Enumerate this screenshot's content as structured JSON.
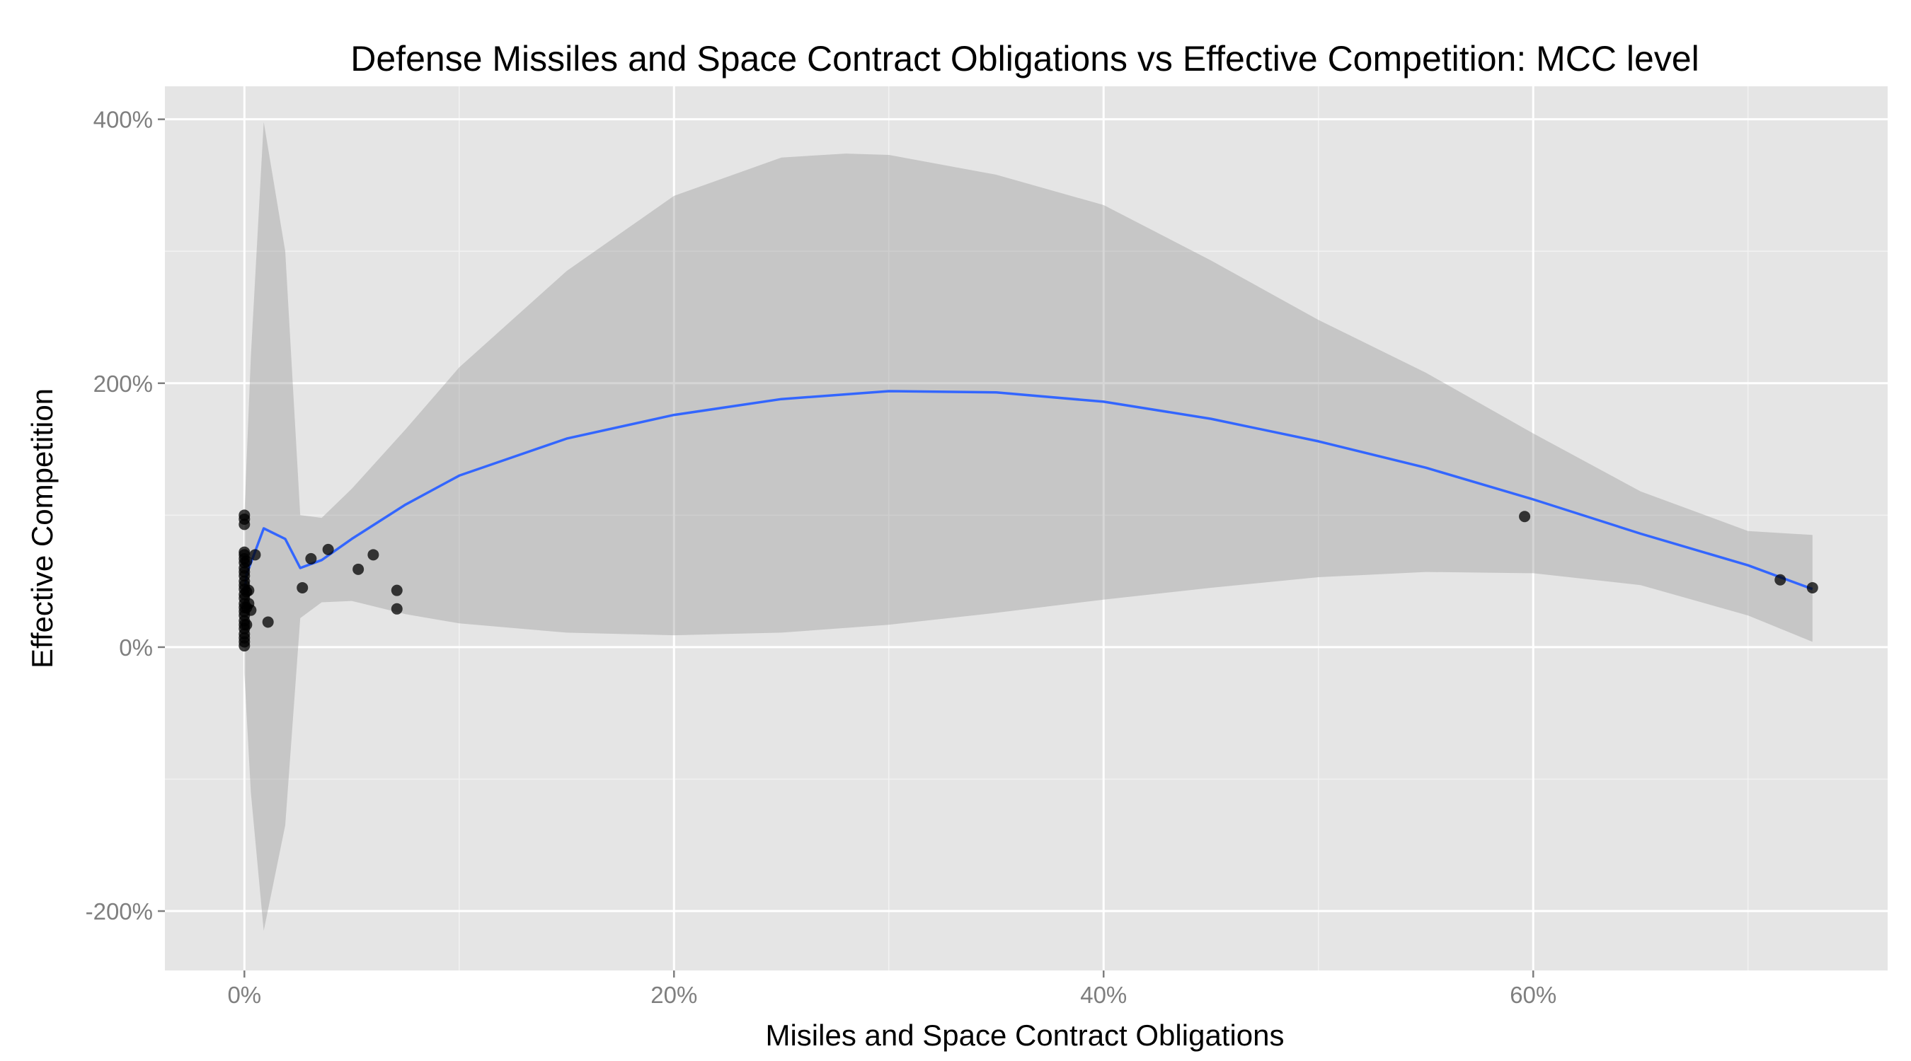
{
  "chart_data": {
    "type": "scatter",
    "title": "Defense Missiles and Space Contract Obligations vs Effective Competition: MCC level",
    "xlabel": "Misiles and Space Contract Obligations",
    "ylabel": "Effective Competition",
    "xlim": [
      -0.037,
      0.765
    ],
    "ylim": [
      -2.45,
      4.25
    ],
    "x_ticks": [
      0,
      0.2,
      0.4,
      0.6
    ],
    "x_tick_labels": [
      "0%",
      "20%",
      "40%",
      "60%"
    ],
    "y_ticks": [
      -2,
      0,
      2,
      4
    ],
    "y_tick_labels": [
      "-200%",
      "0%",
      "200%",
      "400%"
    ],
    "grid": true,
    "legend": "none",
    "colors": {
      "panel_background": "#e5e5e5",
      "grid_line": "#ffffff",
      "point": "#000000",
      "smooth_line": "#3366ff",
      "confidence_band": "#999999"
    },
    "points": [
      {
        "x": 0.0,
        "y": 1.0
      },
      {
        "x": 0.0,
        "y": 0.97
      },
      {
        "x": 0.0,
        "y": 0.93
      },
      {
        "x": 0.0,
        "y": 0.72
      },
      {
        "x": 0.0,
        "y": 0.7
      },
      {
        "x": 0.0,
        "y": 0.67
      },
      {
        "x": 0.0,
        "y": 0.64
      },
      {
        "x": 0.0,
        "y": 0.6
      },
      {
        "x": 0.0,
        "y": 0.57
      },
      {
        "x": 0.0,
        "y": 0.54
      },
      {
        "x": 0.0,
        "y": 0.5
      },
      {
        "x": 0.0,
        "y": 0.47
      },
      {
        "x": 0.0,
        "y": 0.44
      },
      {
        "x": 0.0,
        "y": 0.4
      },
      {
        "x": 0.0,
        "y": 0.37
      },
      {
        "x": 0.0,
        "y": 0.33
      },
      {
        "x": 0.0,
        "y": 0.3
      },
      {
        "x": 0.0,
        "y": 0.27
      },
      {
        "x": 0.0,
        "y": 0.24
      },
      {
        "x": 0.0,
        "y": 0.2
      },
      {
        "x": 0.0,
        "y": 0.17
      },
      {
        "x": 0.0,
        "y": 0.14
      },
      {
        "x": 0.0,
        "y": 0.1
      },
      {
        "x": 0.0,
        "y": 0.07
      },
      {
        "x": 0.0,
        "y": 0.04
      },
      {
        "x": 0.0,
        "y": 0.01
      },
      {
        "x": 0.001,
        "y": 0.65
      },
      {
        "x": 0.001,
        "y": 0.42
      },
      {
        "x": 0.001,
        "y": 0.3
      },
      {
        "x": 0.001,
        "y": 0.17
      },
      {
        "x": 0.002,
        "y": 0.43
      },
      {
        "x": 0.002,
        "y": 0.33
      },
      {
        "x": 0.003,
        "y": 0.28
      },
      {
        "x": 0.005,
        "y": 0.7
      },
      {
        "x": 0.011,
        "y": 0.19
      },
      {
        "x": 0.027,
        "y": 0.45
      },
      {
        "x": 0.031,
        "y": 0.67
      },
      {
        "x": 0.039,
        "y": 0.74
      },
      {
        "x": 0.053,
        "y": 0.59
      },
      {
        "x": 0.06,
        "y": 0.7
      },
      {
        "x": 0.071,
        "y": 0.43
      },
      {
        "x": 0.071,
        "y": 0.29
      },
      {
        "x": 0.596,
        "y": 0.99
      },
      {
        "x": 0.715,
        "y": 0.51
      },
      {
        "x": 0.73,
        "y": 0.45
      }
    ],
    "smooth_line": [
      {
        "x": 0.0,
        "y": 0.4
      },
      {
        "x": 0.001,
        "y": 0.55
      },
      {
        "x": 0.004,
        "y": 0.68
      },
      {
        "x": 0.009,
        "y": 0.9
      },
      {
        "x": 0.019,
        "y": 0.82
      },
      {
        "x": 0.026,
        "y": 0.6
      },
      {
        "x": 0.036,
        "y": 0.66
      },
      {
        "x": 0.05,
        "y": 0.82
      },
      {
        "x": 0.075,
        "y": 1.08
      },
      {
        "x": 0.1,
        "y": 1.3
      },
      {
        "x": 0.15,
        "y": 1.58
      },
      {
        "x": 0.2,
        "y": 1.76
      },
      {
        "x": 0.25,
        "y": 1.88
      },
      {
        "x": 0.3,
        "y": 1.94
      },
      {
        "x": 0.35,
        "y": 1.93
      },
      {
        "x": 0.4,
        "y": 1.86
      },
      {
        "x": 0.45,
        "y": 1.73
      },
      {
        "x": 0.5,
        "y": 1.56
      },
      {
        "x": 0.55,
        "y": 1.36
      },
      {
        "x": 0.6,
        "y": 1.12
      },
      {
        "x": 0.65,
        "y": 0.86
      },
      {
        "x": 0.7,
        "y": 0.62
      },
      {
        "x": 0.73,
        "y": 0.44
      }
    ],
    "confidence_band": {
      "upper": [
        {
          "x": 0.0,
          "y": 1.0
        },
        {
          "x": 0.003,
          "y": 2.2
        },
        {
          "x": 0.009,
          "y": 3.98
        },
        {
          "x": 0.019,
          "y": 3.0
        },
        {
          "x": 0.026,
          "y": 1.0
        },
        {
          "x": 0.036,
          "y": 0.98
        },
        {
          "x": 0.05,
          "y": 1.2
        },
        {
          "x": 0.075,
          "y": 1.65
        },
        {
          "x": 0.1,
          "y": 2.12
        },
        {
          "x": 0.15,
          "y": 2.85
        },
        {
          "x": 0.2,
          "y": 3.42
        },
        {
          "x": 0.25,
          "y": 3.71
        },
        {
          "x": 0.28,
          "y": 3.74
        },
        {
          "x": 0.3,
          "y": 3.73
        },
        {
          "x": 0.35,
          "y": 3.58
        },
        {
          "x": 0.4,
          "y": 3.35
        },
        {
          "x": 0.45,
          "y": 2.93
        },
        {
          "x": 0.5,
          "y": 2.48
        },
        {
          "x": 0.55,
          "y": 2.08
        },
        {
          "x": 0.6,
          "y": 1.62
        },
        {
          "x": 0.65,
          "y": 1.18
        },
        {
          "x": 0.7,
          "y": 0.88
        },
        {
          "x": 0.73,
          "y": 0.85
        }
      ],
      "lower": [
        {
          "x": 0.0,
          "y": -0.2
        },
        {
          "x": 0.003,
          "y": -1.1
        },
        {
          "x": 0.009,
          "y": -2.15
        },
        {
          "x": 0.019,
          "y": -1.35
        },
        {
          "x": 0.026,
          "y": 0.22
        },
        {
          "x": 0.036,
          "y": 0.34
        },
        {
          "x": 0.05,
          "y": 0.35
        },
        {
          "x": 0.075,
          "y": 0.25
        },
        {
          "x": 0.1,
          "y": 0.18
        },
        {
          "x": 0.15,
          "y": 0.11
        },
        {
          "x": 0.2,
          "y": 0.09
        },
        {
          "x": 0.25,
          "y": 0.11
        },
        {
          "x": 0.3,
          "y": 0.17
        },
        {
          "x": 0.35,
          "y": 0.26
        },
        {
          "x": 0.4,
          "y": 0.36
        },
        {
          "x": 0.45,
          "y": 0.45
        },
        {
          "x": 0.5,
          "y": 0.53
        },
        {
          "x": 0.55,
          "y": 0.57
        },
        {
          "x": 0.6,
          "y": 0.56
        },
        {
          "x": 0.65,
          "y": 0.47
        },
        {
          "x": 0.7,
          "y": 0.24
        },
        {
          "x": 0.73,
          "y": 0.04
        }
      ]
    }
  }
}
